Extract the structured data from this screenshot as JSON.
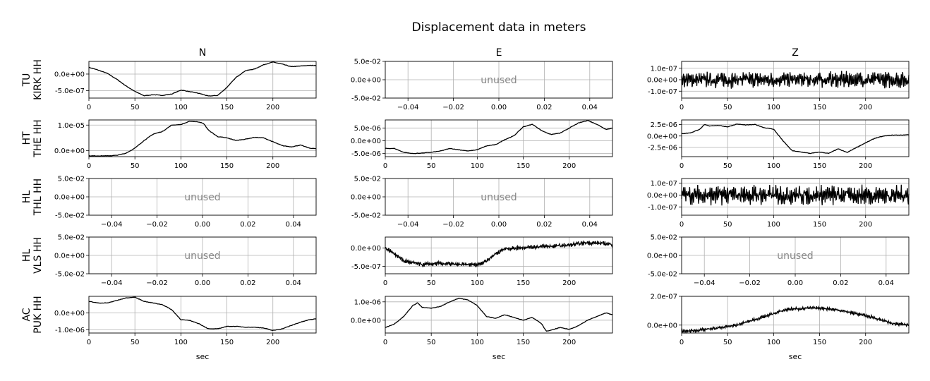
{
  "figure": {
    "title": "Displacement data in meters",
    "columns": [
      "N",
      "E",
      "Z"
    ],
    "rows": [
      [
        "TU",
        "KIRK HH"
      ],
      [
        "HT",
        "THE HH"
      ],
      [
        "HL",
        "THL HH"
      ],
      [
        "HL",
        "VLS HH"
      ],
      [
        "AC",
        "PUK HH"
      ]
    ],
    "xlabel": "sec",
    "unused_text": "unused",
    "line_color": "#000000",
    "grid_color": "#b0b0b0",
    "unused_color": "#888888"
  },
  "chart_data": [
    {
      "type": "line",
      "row": 0,
      "col": 0,
      "title": "N",
      "ylabel": [
        "TU",
        "KIRK HH"
      ],
      "xlim": [
        0,
        247
      ],
      "ylim": [
        -7.2e-07,
        3.8e-07
      ],
      "xticks": [
        0,
        50,
        100,
        150,
        200
      ],
      "yticks": [
        0,
        -5e-07
      ],
      "yticklabels": [
        "0.0e+00",
        "-5.0e-07"
      ],
      "grid": true,
      "x": [
        0,
        10,
        20,
        30,
        40,
        50,
        60,
        70,
        80,
        90,
        100,
        110,
        120,
        130,
        140,
        150,
        160,
        170,
        180,
        190,
        200,
        210,
        220,
        230,
        240,
        247
      ],
      "y": [
        2e-07,
        1.2e-07,
        2e-08,
        -1.5e-07,
        -3.5e-07,
        -5.2e-07,
        -6.5e-07,
        -6.2e-07,
        -6.4e-07,
        -6e-07,
        -4.8e-07,
        -5.3e-07,
        -5.8e-07,
        -6.6e-07,
        -6.4e-07,
        -4e-07,
        -1e-07,
        1e-07,
        1.5e-07,
        2.8e-07,
        3.6e-07,
        3e-07,
        2.2e-07,
        2.4e-07,
        2.6e-07,
        2.6e-07
      ]
    },
    {
      "type": "line",
      "row": 0,
      "col": 1,
      "title": "E",
      "ylabel": [
        "TU",
        "KIRK HH"
      ],
      "unused": true,
      "xlim": [
        -0.05,
        0.05
      ],
      "ylim": [
        -0.05,
        0.05
      ],
      "xticks": [
        -0.04,
        -0.02,
        0,
        0.02,
        0.04
      ],
      "xticklabels": [
        "−0.04",
        "−0.02",
        "0.00",
        "0.02",
        "0.04"
      ],
      "yticks": [
        0.05,
        0,
        -0.05
      ],
      "yticklabels": [
        "5.0e-02",
        "0.0e+00",
        "-5.0e-02"
      ],
      "grid": true
    },
    {
      "type": "line",
      "row": 0,
      "col": 2,
      "title": "Z",
      "ylabel": [
        "TU",
        "KIRK HH"
      ],
      "xlim": [
        0,
        247
      ],
      "ylim": [
        -1.6e-07,
        1.6e-07
      ],
      "xticks": [
        0,
        50,
        100,
        150,
        200
      ],
      "yticks": [
        1e-07,
        0,
        -1e-07
      ],
      "yticklabels": [
        "1.0e-07",
        "0.0e+00",
        "-1.0e-07"
      ],
      "grid": true,
      "noise_amplitude": 6e-08,
      "x": [
        0,
        247
      ],
      "y": [
        0,
        0
      ]
    },
    {
      "type": "line",
      "row": 1,
      "col": 0,
      "ylabel": [
        "HT",
        "THE HH"
      ],
      "xlim": [
        0,
        247
      ],
      "ylim": [
        -2.3e-06,
        1.2e-05
      ],
      "xticks": [
        0,
        50,
        100,
        150,
        200
      ],
      "yticks": [
        1e-05,
        0
      ],
      "yticklabels": [
        "1.0e-05",
        "0.0e+00"
      ],
      "grid": true,
      "x": [
        0,
        20,
        30,
        40,
        50,
        60,
        70,
        80,
        90,
        100,
        110,
        120,
        125,
        130,
        140,
        150,
        160,
        170,
        180,
        190,
        200,
        210,
        220,
        230,
        240,
        247
      ],
      "y": [
        -2e-06,
        -2e-06,
        -1.8e-06,
        -1e-06,
        1e-06,
        4e-06,
        6.5e-06,
        7.5e-06,
        1e-05,
        1.02e-05,
        1.15e-05,
        1.12e-05,
        1.05e-05,
        8e-06,
        5.5e-06,
        5e-06,
        4e-06,
        4.5e-06,
        5.2e-06,
        5e-06,
        3.5e-06,
        2e-06,
        1.5e-06,
        2.2e-06,
        1e-06,
        8e-07
      ]
    },
    {
      "type": "line",
      "row": 1,
      "col": 1,
      "ylabel": [
        "HT",
        "THE HH"
      ],
      "xlim": [
        0,
        247
      ],
      "ylim": [
        -6.2e-06,
        8.2e-06
      ],
      "xticks": [
        0,
        50,
        100,
        150,
        200
      ],
      "yticks": [
        5e-06,
        0,
        -5e-06
      ],
      "yticklabels": [
        "5.0e-06",
        "0.0e+00",
        "-5.0e-06"
      ],
      "grid": true,
      "x": [
        0,
        10,
        20,
        30,
        40,
        50,
        60,
        70,
        80,
        90,
        100,
        110,
        120,
        130,
        140,
        150,
        160,
        170,
        180,
        190,
        200,
        210,
        220,
        230,
        240,
        247
      ],
      "y": [
        -3e-06,
        -3e-06,
        -4.5e-06,
        -5e-06,
        -4.8e-06,
        -4.5e-06,
        -4e-06,
        -3e-06,
        -3.5e-06,
        -4e-06,
        -3.5e-06,
        -2e-06,
        -1.5e-06,
        5e-07,
        2e-06,
        5.5e-06,
        6.5e-06,
        4e-06,
        2.5e-06,
        3e-06,
        5e-06,
        7e-06,
        8e-06,
        6.5e-06,
        4.5e-06,
        5e-06
      ]
    },
    {
      "type": "line",
      "row": 1,
      "col": 2,
      "ylabel": [
        "HT",
        "THE HH"
      ],
      "xlim": [
        0,
        247
      ],
      "ylim": [
        -4.5e-06,
        3.5e-06
      ],
      "xticks": [
        0,
        50,
        100,
        150,
        200
      ],
      "yticks": [
        2.5e-06,
        0,
        -2.5e-06
      ],
      "yticklabels": [
        "2.5e-06",
        "0.0e+00",
        "-2.5e-06"
      ],
      "grid": true,
      "x": [
        0,
        10,
        20,
        25,
        30,
        40,
        50,
        60,
        70,
        80,
        90,
        100,
        110,
        120,
        130,
        140,
        150,
        160,
        170,
        180,
        190,
        200,
        210,
        220,
        230,
        240,
        247
      ],
      "y": [
        5e-07,
        7e-07,
        1.5e-06,
        2.5e-06,
        2.2e-06,
        2.3e-06,
        2e-06,
        2.6e-06,
        2.4e-06,
        2.5e-06,
        1.8e-06,
        1.5e-06,
        -1e-06,
        -3.2e-06,
        -3.5e-06,
        -3.8e-06,
        -3.5e-06,
        -3.8e-06,
        -2.8e-06,
        -3.6e-06,
        -2.5e-06,
        -1.5e-06,
        -5e-07,
        0,
        2e-07,
        2e-07,
        3e-07
      ]
    },
    {
      "type": "line",
      "row": 2,
      "col": 0,
      "ylabel": [
        "HL",
        "THL HH"
      ],
      "unused": true,
      "xlim": [
        -0.05,
        0.05
      ],
      "ylim": [
        -0.05,
        0.05
      ],
      "xticks": [
        -0.04,
        -0.02,
        0,
        0.02,
        0.04
      ],
      "xticklabels": [
        "−0.04",
        "−0.02",
        "0.00",
        "0.02",
        "0.04"
      ],
      "yticks": [
        0.05,
        0,
        -0.05
      ],
      "yticklabels": [
        "5.0e-02",
        "0.0e+00",
        "-5.0e-02"
      ],
      "grid": true
    },
    {
      "type": "line",
      "row": 2,
      "col": 1,
      "ylabel": [
        "HL",
        "THL HH"
      ],
      "unused": true,
      "xlim": [
        -0.05,
        0.05
      ],
      "ylim": [
        -0.05,
        0.05
      ],
      "xticks": [
        -0.04,
        -0.02,
        0,
        0.02,
        0.04
      ],
      "xticklabels": [
        "−0.04",
        "−0.02",
        "0.00",
        "0.02",
        "0.04"
      ],
      "yticks": [
        0.05,
        0,
        -0.05
      ],
      "yticklabels": [
        "5.0e-02",
        "0.0e+00",
        "-5.0e-02"
      ],
      "grid": true
    },
    {
      "type": "line",
      "row": 2,
      "col": 2,
      "ylabel": [
        "HL",
        "THL HH"
      ],
      "xlim": [
        0,
        247
      ],
      "ylim": [
        -1.7e-07,
        1.4e-07
      ],
      "xticks": [
        0,
        50,
        100,
        150,
        200
      ],
      "yticks": [
        1e-07,
        0,
        -1e-07
      ],
      "yticklabels": [
        "1.0e-07",
        "0.0e+00",
        "-1.0e-07"
      ],
      "grid": true,
      "noise_amplitude": 7e-08,
      "x": [
        0,
        247
      ],
      "y": [
        0,
        0
      ]
    },
    {
      "type": "line",
      "row": 3,
      "col": 0,
      "ylabel": [
        "HL",
        "VLS HH"
      ],
      "unused": true,
      "xlim": [
        -0.05,
        0.05
      ],
      "ylim": [
        -0.05,
        0.05
      ],
      "xticks": [
        -0.04,
        -0.02,
        0,
        0.02,
        0.04
      ],
      "xticklabels": [
        "−0.04",
        "−0.02",
        "0.00",
        "0.02",
        "0.04"
      ],
      "yticks": [
        0.05,
        0,
        -0.05
      ],
      "yticklabels": [
        "5.0e-02",
        "0.0e+00",
        "-5.0e-02"
      ],
      "grid": true
    },
    {
      "type": "line",
      "row": 3,
      "col": 1,
      "ylabel": [
        "HL",
        "VLS HH"
      ],
      "xlim": [
        0,
        247
      ],
      "ylim": [
        -7e-07,
        3e-07
      ],
      "xticks": [
        0,
        50,
        100,
        150,
        200
      ],
      "yticks": [
        0,
        -5e-07
      ],
      "yticklabels": [
        "0.0e+00",
        "-5.0e-07"
      ],
      "grid": true,
      "noise_amplitude": 5e-08,
      "x": [
        0,
        10,
        20,
        40,
        60,
        80,
        100,
        110,
        120,
        130,
        140,
        160,
        180,
        200,
        220,
        240,
        247
      ],
      "y": [
        0,
        -1.5e-07,
        -3.5e-07,
        -4.5e-07,
        -4.2e-07,
        -4.5e-07,
        -4.5e-07,
        -3.5e-07,
        -1.5e-07,
        -2e-08,
        0,
        3e-08,
        5e-08,
        8e-08,
        1.5e-07,
        1.2e-07,
        1e-07
      ]
    },
    {
      "type": "line",
      "row": 3,
      "col": 2,
      "ylabel": [
        "HL",
        "VLS HH"
      ],
      "unused": true,
      "xlim": [
        -0.05,
        0.05
      ],
      "ylim": [
        -0.05,
        0.05
      ],
      "xticks": [
        -0.04,
        -0.02,
        0,
        0.02,
        0.04
      ],
      "xticklabels": [
        "−0.04",
        "−0.02",
        "0.00",
        "0.02",
        "0.04"
      ],
      "yticks": [
        0.05,
        0,
        -0.05
      ],
      "yticklabels": [
        "5.0e-02",
        "0.0e+00",
        "-5.0e-02"
      ],
      "grid": true
    },
    {
      "type": "line",
      "row": 4,
      "col": 0,
      "ylabel": [
        "AC",
        "PUK HH"
      ],
      "xlabel": "sec",
      "xlim": [
        0,
        247
      ],
      "ylim": [
        -1.2e-06,
        1e-06
      ],
      "xticks": [
        0,
        50,
        100,
        150,
        200
      ],
      "yticks": [
        0,
        -1e-06
      ],
      "yticklabels": [
        "0.0e+00",
        "-1.0e-06"
      ],
      "grid": true,
      "x": [
        0,
        10,
        20,
        30,
        40,
        50,
        60,
        70,
        80,
        90,
        100,
        110,
        120,
        130,
        140,
        150,
        160,
        170,
        180,
        190,
        200,
        210,
        220,
        230,
        240,
        247
      ],
      "y": [
        7e-07,
        6e-07,
        6e-07,
        7.5e-07,
        9e-07,
        9.5e-07,
        7e-07,
        6e-07,
        5e-07,
        2e-07,
        -4e-07,
        -4.5e-07,
        -6.5e-07,
        -9.5e-07,
        -9.5e-07,
        -8e-07,
        -8e-07,
        -8.5e-07,
        -8.5e-07,
        -9e-07,
        -1.05e-06,
        -9.5e-07,
        -7.5e-07,
        -5.5e-07,
        -4e-07,
        -3.5e-07
      ]
    },
    {
      "type": "line",
      "row": 4,
      "col": 1,
      "ylabel": [
        "AC",
        "PUK HH"
      ],
      "xlabel": "sec",
      "xlim": [
        0,
        247
      ],
      "ylim": [
        -7e-07,
        1.3e-06
      ],
      "xticks": [
        0,
        50,
        100,
        150,
        200
      ],
      "yticks": [
        1e-06,
        0
      ],
      "yticklabels": [
        "1.0e-06",
        "0.0e+00"
      ],
      "grid": true,
      "x": [
        0,
        10,
        20,
        30,
        35,
        40,
        50,
        60,
        70,
        80,
        90,
        100,
        110,
        120,
        130,
        140,
        150,
        160,
        170,
        175,
        180,
        190,
        200,
        210,
        220,
        230,
        240,
        247
      ],
      "y": [
        -4e-07,
        -2e-07,
        2e-07,
        8e-07,
        9.5e-07,
        7e-07,
        6.5e-07,
        7.5e-07,
        1e-06,
        1.2e-06,
        1.1e-06,
        8e-07,
        2e-07,
        1e-07,
        3e-07,
        1.5e-07,
        0,
        1.5e-07,
        -2e-07,
        -6e-07,
        -5.5e-07,
        -4e-07,
        -5e-07,
        -3e-07,
        0,
        2e-07,
        4e-07,
        3e-07
      ]
    },
    {
      "type": "line",
      "row": 4,
      "col": 2,
      "ylabel": [
        "AC",
        "PUK HH"
      ],
      "xlabel": "sec",
      "xlim": [
        0,
        247
      ],
      "ylim": [
        -5.5e-08,
        2e-07
      ],
      "xticks": [
        0,
        50,
        100,
        150,
        200
      ],
      "yticks": [
        2e-07,
        0
      ],
      "yticklabels": [
        "2.0e-07",
        "0.0e+00"
      ],
      "grid": true,
      "noise_amplitude": 1e-08,
      "x": [
        0,
        20,
        40,
        60,
        80,
        100,
        115,
        130,
        150,
        170,
        190,
        210,
        230,
        247
      ],
      "y": [
        -4.5e-08,
        -3.5e-08,
        -2e-08,
        0,
        4e-08,
        8e-08,
        1.1e-07,
        1.15e-07,
        1.2e-07,
        1.05e-07,
        8e-08,
        5e-08,
        1e-08,
        0
      ]
    }
  ]
}
